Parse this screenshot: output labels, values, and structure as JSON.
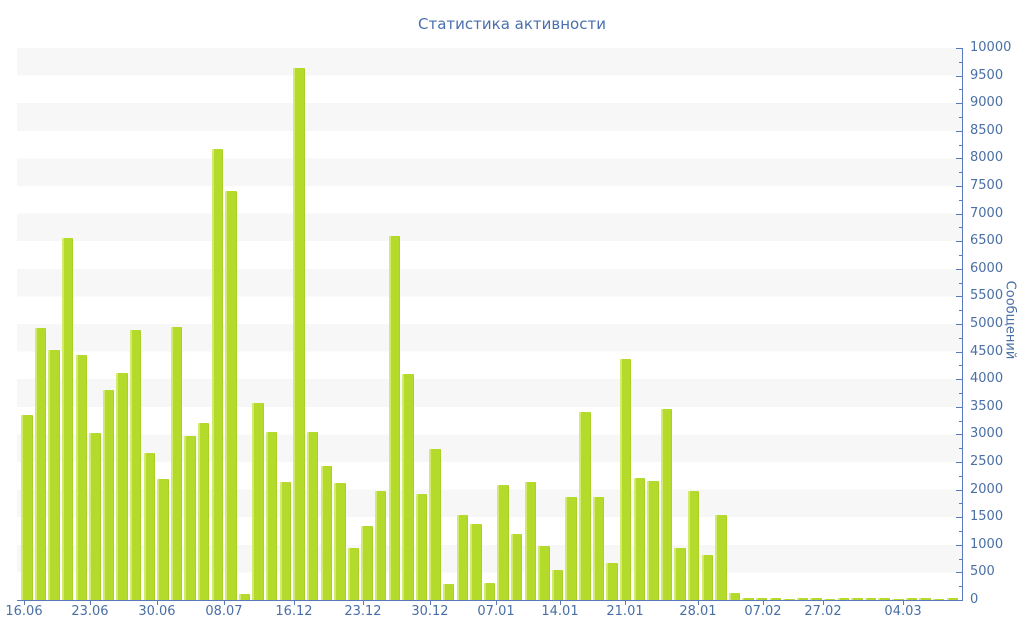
{
  "header": {
    "title": "Статистика активности"
  },
  "chart_data": {
    "type": "bar",
    "title": "Статистика активности",
    "xlabel": "",
    "ylabel": "Сообщений",
    "ylim": [
      0,
      10000
    ],
    "y_tick_step": 500,
    "y_minor_tick_step": 250,
    "y_tick_labels": [
      "0",
      "500",
      "1000",
      "1500",
      "2000",
      "2500",
      "3000",
      "3500",
      "4000",
      "4500",
      "5000",
      "5500",
      "6000",
      "6500",
      "7000",
      "7500",
      "8000",
      "8500",
      "9000",
      "9500",
      "10000"
    ],
    "y_axis_side": "right",
    "grid": "horizontal-alternating-bands",
    "legend": "none",
    "colors": {
      "bar": "#b4da2b",
      "bar_light_edge": "#d2ea6e",
      "bar_dark_edge": "#a9d024",
      "axis_line": "#5a79bb",
      "label_text": "#4a6fa5",
      "title_text": "#4a6fad",
      "band_gray": "#f7f7f7",
      "band_white": "#ffffff"
    },
    "x_tick_labels": [
      "16.06",
      "23.06",
      "30.06",
      "08.07",
      "16.12",
      "23.12",
      "30.12",
      "07.01",
      "14.01",
      "21.01",
      "28.01",
      "07.02",
      "27.02",
      "04.03"
    ],
    "x_tick_positions": [
      0.0074,
      0.0772,
      0.1481,
      0.219,
      0.2931,
      0.3661,
      0.437,
      0.5069,
      0.5746,
      0.6434,
      0.7206,
      0.7894,
      0.8529,
      0.9376
    ],
    "values": [
      3350,
      4930,
      4530,
      6560,
      4440,
      3020,
      3800,
      4120,
      4900,
      2670,
      2190,
      4950,
      2970,
      3210,
      8170,
      7410,
      100,
      3570,
      3040,
      2130,
      9640,
      3040,
      2430,
      2120,
      950,
      1340,
      1980,
      6590,
      4100,
      1920,
      2740,
      290,
      1540,
      1380,
      300,
      2080,
      1190,
      2140,
      970,
      540,
      1870,
      3410,
      1860,
      670,
      4360,
      2210,
      2160,
      3460,
      940,
      1970,
      810,
      1540,
      120,
      35,
      30,
      35,
      25,
      35,
      30,
      25,
      35,
      30,
      45,
      40,
      25,
      35,
      30,
      25,
      40
    ]
  }
}
